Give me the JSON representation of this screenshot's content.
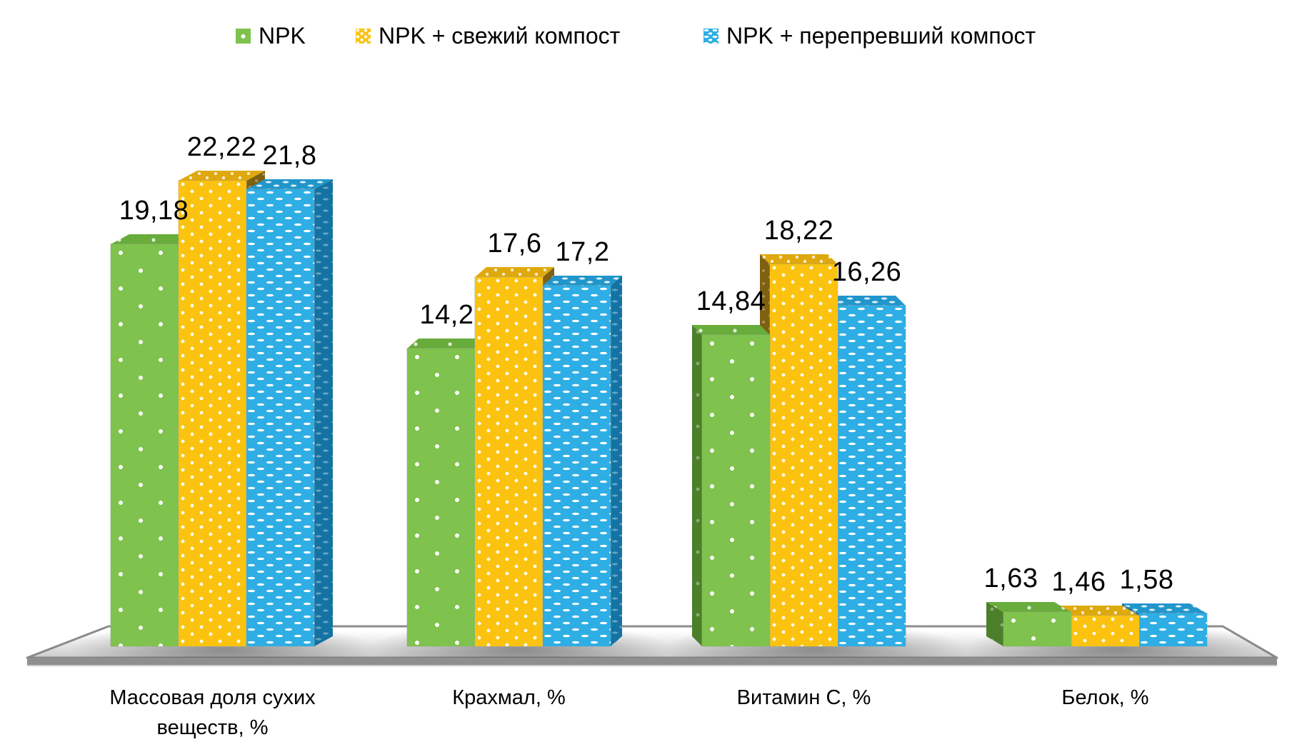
{
  "chart_data": {
    "type": "bar",
    "style": "3d-clustered-column",
    "background": "#ffffff",
    "grid": false,
    "legend_position": "top",
    "value_label_decimal_separator": ",",
    "categories": [
      "Массовая доля сухих веществ, %",
      "Крахмал, %",
      "Витамин С, %",
      "Белок, %"
    ],
    "series": [
      {
        "name": "NPK",
        "values": [
          19.18,
          14.2,
          14.84,
          1.63
        ],
        "labels": [
          "19,18",
          "14,2",
          "14,84",
          "1,63"
        ],
        "color": "#7FC24D",
        "pattern": "green"
      },
      {
        "name": "NPK + свежий компост",
        "values": [
          22.22,
          17.6,
          18.22,
          1.46
        ],
        "labels": [
          "22,22",
          "17,6",
          "18,22",
          "1,46"
        ],
        "color": "#FBC30F",
        "pattern": "yellow"
      },
      {
        "name": "NPK + перепревший компост",
        "values": [
          21.8,
          17.2,
          16.26,
          1.58
        ],
        "labels": [
          "21,8",
          "17,2",
          "16,26",
          "1,58"
        ],
        "color": "#2EAEE4",
        "pattern": "blue"
      }
    ],
    "ylim": [
      0,
      22.22
    ],
    "floor_color": "#ffffff",
    "floor_edge_color": "#8c8c8c",
    "label_color": "#000000"
  }
}
